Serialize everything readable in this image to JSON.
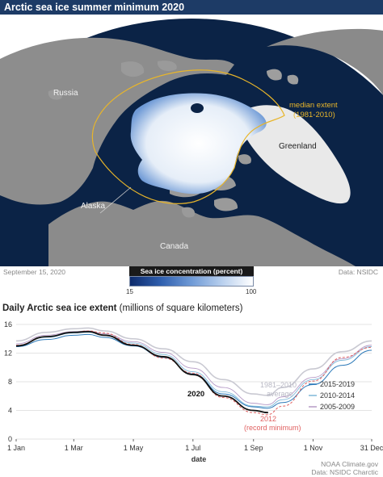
{
  "map": {
    "title": "Arctic sea ice summer minimum 2020",
    "labels": {
      "russia": "Russia",
      "greenland": "Greenland",
      "alaska": "Alaska",
      "canada": "Canada",
      "median_line1": "median extent",
      "median_line2": "(1981-2010)"
    },
    "date": "September 15, 2020",
    "source": "Data: NSIDC",
    "legend": {
      "title": "Sea ice concentration (percent)",
      "min": "15",
      "max": "100"
    },
    "colors": {
      "ocean": "#0b2346",
      "land": "#8a8a8a",
      "ice": "#f2f6fb",
      "median": "#e8b52a"
    }
  },
  "chart": {
    "title_bold": "Daily Arctic sea ice extent",
    "title_rest": " (millions of square kilometers)",
    "credit1": "NOAA Climate.gov",
    "credit2": "Data: NSIDC Charctic"
  },
  "chart_data": {
    "type": "line",
    "xlabel": "date",
    "ylabel": "",
    "ylim": [
      0,
      16
    ],
    "yticks": [
      0,
      4,
      8,
      12,
      16
    ],
    "xtick_labels": [
      "1 Jan",
      "1 Mar",
      "1 May",
      "1 Jul",
      "1 Sep",
      "1 Nov",
      "31 Dec"
    ],
    "xtick_days": [
      1,
      60,
      121,
      182,
      244,
      305,
      365
    ],
    "grid": "horizontal",
    "annotations": {
      "avg_line1": "1981–2010",
      "avg_line2": "average",
      "y2020": "2020",
      "y2012_line1": "2012",
      "y2012_line2": "(record minimum)"
    },
    "legend": [
      {
        "name": "2015-2019",
        "color": "#2a78b8"
      },
      {
        "name": "2010-2014",
        "color": "#7fb9d9"
      },
      {
        "name": "2005-2009",
        "color": "#b59ac6"
      }
    ],
    "legend_placement": "right",
    "series": [
      {
        "name": "1981–2010 average",
        "color": "#c9c9d2",
        "width": 1.6,
        "x": [
          1,
          32,
          60,
          75,
          91,
          121,
          152,
          182,
          213,
          244,
          258,
          274,
          305,
          335,
          365
        ],
        "y": [
          13.7,
          14.9,
          15.4,
          15.5,
          15.1,
          14.0,
          12.6,
          10.8,
          8.3,
          6.3,
          6.1,
          7.2,
          9.8,
          12.2,
          13.7
        ]
      },
      {
        "name": "2005-2009",
        "color": "#b59ac6",
        "width": 0.9,
        "x": [
          1,
          32,
          60,
          75,
          91,
          121,
          152,
          182,
          213,
          244,
          258,
          274,
          305,
          335,
          365
        ],
        "y": [
          13.3,
          14.5,
          15.0,
          15.1,
          14.7,
          13.6,
          12.1,
          9.9,
          7.2,
          5.0,
          4.8,
          5.9,
          8.6,
          11.2,
          13.1
        ]
      },
      {
        "name": "2010-2014",
        "color": "#7fb9d9",
        "width": 0.9,
        "x": [
          1,
          32,
          60,
          75,
          91,
          121,
          152,
          182,
          213,
          244,
          258,
          274,
          305,
          335,
          365
        ],
        "y": [
          13.1,
          14.2,
          14.8,
          14.9,
          14.5,
          13.4,
          11.8,
          9.4,
          6.6,
          4.6,
          4.5,
          5.5,
          8.3,
          11.0,
          12.9
        ]
      },
      {
        "name": "2015-2019",
        "color": "#2a78b8",
        "width": 1.0,
        "x": [
          1,
          32,
          60,
          75,
          91,
          121,
          152,
          182,
          213,
          244,
          258,
          274,
          305,
          335,
          365
        ],
        "y": [
          12.9,
          13.9,
          14.5,
          14.6,
          14.2,
          13.0,
          11.4,
          9.1,
          6.3,
          4.5,
          4.3,
          5.1,
          7.6,
          10.3,
          12.4
        ]
      },
      {
        "name": "2012",
        "color": "#e06060",
        "width": 1.0,
        "dash": "3,2",
        "x": [
          1,
          32,
          60,
          75,
          91,
          121,
          152,
          182,
          213,
          244,
          258,
          274,
          305,
          335,
          365
        ],
        "y": [
          13.1,
          14.3,
          14.9,
          15.1,
          14.8,
          13.2,
          11.3,
          9.2,
          5.8,
          3.7,
          3.4,
          4.6,
          8.1,
          11.4,
          12.8
        ]
      },
      {
        "name": "2020",
        "color": "#111111",
        "width": 1.8,
        "x": [
          1,
          32,
          60,
          75,
          91,
          121,
          152,
          182,
          213,
          244,
          259
        ],
        "y": [
          13.0,
          14.3,
          14.9,
          15.0,
          14.5,
          13.1,
          11.5,
          9.0,
          6.0,
          4.0,
          3.7
        ]
      }
    ]
  }
}
